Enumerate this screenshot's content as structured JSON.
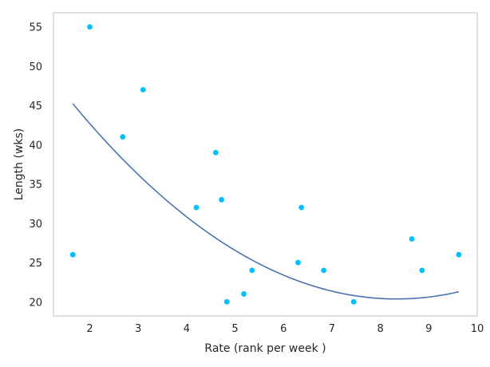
{
  "chart_data": {
    "type": "scatter",
    "title": "",
    "xlabel": "Rate (rank per week )",
    "ylabel": "Length (wks)",
    "xlim": [
      1.25,
      10.0
    ],
    "ylim": [
      18.2,
      56.8
    ],
    "x_ticks": [
      2,
      3,
      4,
      5,
      6,
      7,
      8,
      9,
      10
    ],
    "y_ticks": [
      20,
      25,
      30,
      35,
      40,
      45,
      50,
      55
    ],
    "grid": false,
    "legend": "none",
    "colors": {
      "points": "#00bfff",
      "fit": "#4c72b0",
      "frame": "#cccccc",
      "text": "#262626"
    },
    "series": [
      {
        "kind": "points",
        "points": [
          {
            "x": 1.65,
            "y": 26
          },
          {
            "x": 2.0,
            "y": 55
          },
          {
            "x": 2.68,
            "y": 41
          },
          {
            "x": 3.1,
            "y": 47
          },
          {
            "x": 4.2,
            "y": 32
          },
          {
            "x": 4.6,
            "y": 39
          },
          {
            "x": 4.72,
            "y": 33
          },
          {
            "x": 4.83,
            "y": 20
          },
          {
            "x": 5.18,
            "y": 21
          },
          {
            "x": 5.35,
            "y": 24
          },
          {
            "x": 6.3,
            "y": 25
          },
          {
            "x": 6.37,
            "y": 32
          },
          {
            "x": 6.83,
            "y": 24
          },
          {
            "x": 7.45,
            "y": 20
          },
          {
            "x": 8.65,
            "y": 28
          },
          {
            "x": 8.86,
            "y": 24
          },
          {
            "x": 9.62,
            "y": 26
          }
        ]
      },
      {
        "kind": "fit",
        "type": "quadratic",
        "x_range": [
          1.65,
          9.62
        ],
        "coefficients": [
          59.0,
          -9.27,
          0.556
        ]
      }
    ]
  }
}
